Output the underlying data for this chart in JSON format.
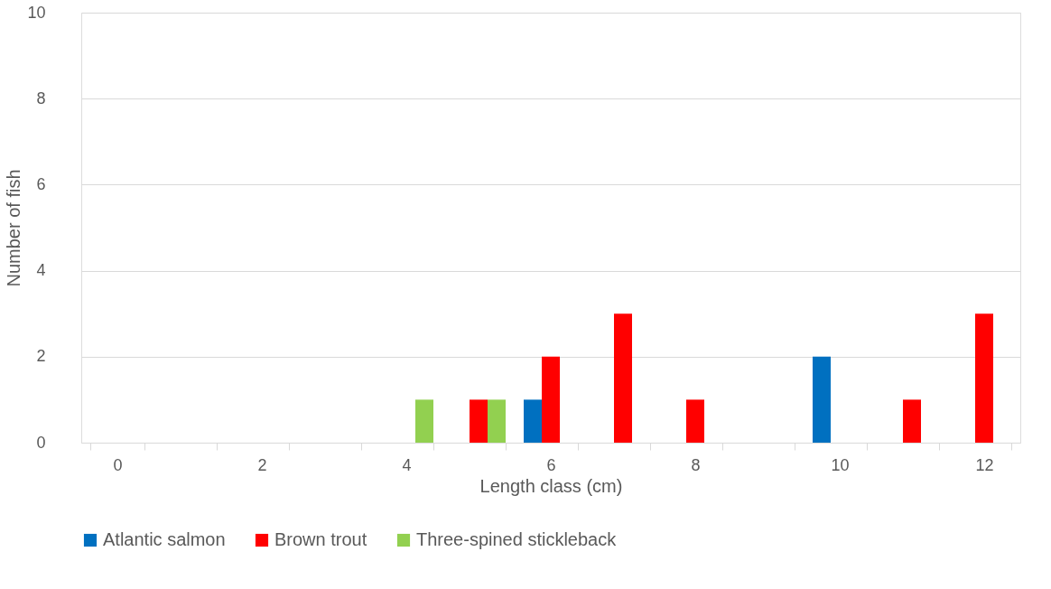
{
  "chart_data": {
    "type": "bar",
    "xlabel": "Length class (cm)",
    "ylabel": "Number of fish",
    "categories": [
      "0",
      null,
      "2",
      null,
      "4",
      null,
      "6",
      null,
      "8",
      null,
      "10",
      null,
      "12"
    ],
    "series": [
      {
        "name": "Atlantic salmon",
        "color": "#0070c0",
        "values": [
          0,
          0,
          0,
          0,
          0,
          0,
          1,
          0,
          0,
          0,
          2,
          0,
          0
        ]
      },
      {
        "name": "Brown trout",
        "color": "#ff0000",
        "values": [
          0,
          0,
          0,
          0,
          0,
          1,
          2,
          3,
          1,
          0,
          0,
          1,
          3
        ]
      },
      {
        "name": "Three-spined stickleback",
        "color": "#92d050",
        "values": [
          0,
          0,
          0,
          0,
          1,
          1,
          0,
          0,
          0,
          0,
          0,
          0,
          0
        ]
      }
    ],
    "ylim": [
      0,
      10
    ],
    "yticks": [
      0,
      2,
      4,
      6,
      8,
      10
    ],
    "grid": "y",
    "legend": "bottom"
  }
}
